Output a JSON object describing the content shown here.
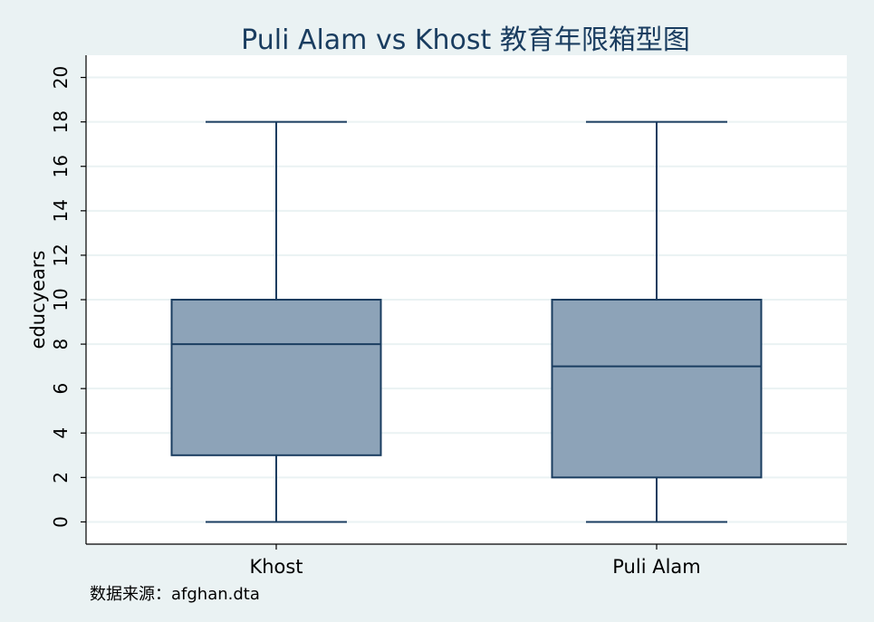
{
  "chart_data": {
    "type": "box",
    "title": "Puli Alam vs Khost 教育年限箱型图",
    "xlabel": "",
    "ylabel": "educyears",
    "ylim": [
      -1,
      21
    ],
    "yticks": [
      0,
      2,
      4,
      6,
      8,
      10,
      12,
      14,
      16,
      18,
      20
    ],
    "grid": true,
    "categories": [
      "Khost",
      "Puli Alam"
    ],
    "boxes": [
      {
        "category": "Khost",
        "min": 0,
        "q1": 3,
        "median": 8,
        "q3": 10,
        "max": 18
      },
      {
        "category": "Puli Alam",
        "min": 0,
        "q1": 2,
        "median": 7,
        "q3": 10,
        "max": 18
      }
    ],
    "note": "数据来源：afghan.dta"
  },
  "colors": {
    "background": "#eaf2f3",
    "plot_background": "#ffffff",
    "box_fill": "#8da3b8",
    "box_stroke": "#1a3d60",
    "grid": "#eaf2f3",
    "title": "#1a3d60"
  }
}
